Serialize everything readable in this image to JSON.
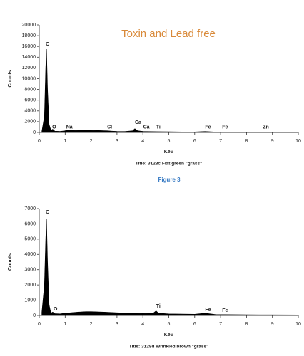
{
  "caption": "Figure 3",
  "chart_data": [
    {
      "type": "area",
      "title": "Title: 3128c Flat green \"grass\"",
      "xlabel": "KeV",
      "ylabel": "Counts",
      "annotation": "Toxin and Lead free",
      "annotation_color": "#d98a3a",
      "color": "#000000",
      "x": [
        0.1,
        0.2,
        0.25,
        0.28,
        0.32,
        0.38,
        0.45,
        0.52,
        0.6,
        0.8,
        1.0,
        1.04,
        1.2,
        1.5,
        1.8,
        2.0,
        2.3,
        2.62,
        2.8,
        3.0,
        3.3,
        3.6,
        3.69,
        3.8,
        4.0,
        4.5,
        5.0,
        5.5,
        6.0,
        6.4,
        6.8,
        7.5,
        8.0,
        8.6,
        9.0,
        10
      ],
      "values": [
        200,
        3000,
        12000,
        15500,
        8000,
        1500,
        400,
        600,
        250,
        200,
        300,
        450,
        350,
        400,
        450,
        400,
        350,
        300,
        250,
        200,
        180,
        300,
        700,
        300,
        200,
        150,
        120,
        100,
        100,
        180,
        80,
        70,
        60,
        60,
        50,
        40
      ],
      "xlim": [
        0,
        10
      ],
      "xticks": [
        0,
        1,
        2,
        3,
        4,
        5,
        6,
        7,
        8,
        9,
        10
      ],
      "ylim": [
        0,
        20000
      ],
      "yticks": [
        0,
        2000,
        4000,
        6000,
        8000,
        10000,
        12000,
        14000,
        16000,
        18000,
        20000
      ],
      "peaks": [
        {
          "label": "C",
          "x": 0.25,
          "y": 16400
        },
        {
          "label": "O",
          "x": 0.5,
          "y": 1000
        },
        {
          "label": "Na",
          "x": 1.04,
          "y": 1000
        },
        {
          "label": "Cl",
          "x": 2.62,
          "y": 1000
        },
        {
          "label": "Ca",
          "x": 3.69,
          "y": 1850
        },
        {
          "label": "Ca",
          "x": 4.01,
          "y": 1000
        },
        {
          "label": "Ti",
          "x": 4.51,
          "y": 1000
        },
        {
          "label": "Fe",
          "x": 6.4,
          "y": 1000
        },
        {
          "label": "Fe",
          "x": 7.06,
          "y": 1000
        },
        {
          "label": "Zn",
          "x": 8.63,
          "y": 1000
        }
      ]
    },
    {
      "type": "area",
      "title": "Title: 3128d Wrinkled brown \"grass\"",
      "xlabel": "KeV",
      "ylabel": "Counts",
      "color": "#000000",
      "x": [
        0.1,
        0.2,
        0.25,
        0.28,
        0.32,
        0.38,
        0.45,
        0.52,
        0.6,
        0.8,
        1.0,
        1.5,
        1.8,
        2.0,
        2.5,
        3.0,
        3.5,
        4.0,
        4.4,
        4.51,
        4.6,
        5.0,
        6.0,
        6.4,
        6.8,
        7.5,
        8.5,
        10
      ],
      "values": [
        200,
        2000,
        5000,
        6300,
        3500,
        700,
        150,
        220,
        120,
        100,
        150,
        220,
        250,
        250,
        220,
        180,
        150,
        130,
        150,
        300,
        150,
        100,
        80,
        150,
        60,
        50,
        40,
        30
      ],
      "xlim": [
        0,
        10
      ],
      "xticks": [
        0,
        1,
        2,
        3,
        4,
        5,
        6,
        7,
        8,
        9,
        10
      ],
      "ylim": [
        0,
        7000
      ],
      "yticks": [
        0,
        1000,
        2000,
        3000,
        4000,
        5000,
        6000,
        7000
      ],
      "peaks": [
        {
          "label": "C",
          "x": 0.25,
          "y": 6770
        },
        {
          "label": "O",
          "x": 0.55,
          "y": 420
        },
        {
          "label": "Ti",
          "x": 4.51,
          "y": 600
        },
        {
          "label": "Fe",
          "x": 6.4,
          "y": 370
        },
        {
          "label": "Fe",
          "x": 7.06,
          "y": 330
        }
      ]
    }
  ]
}
